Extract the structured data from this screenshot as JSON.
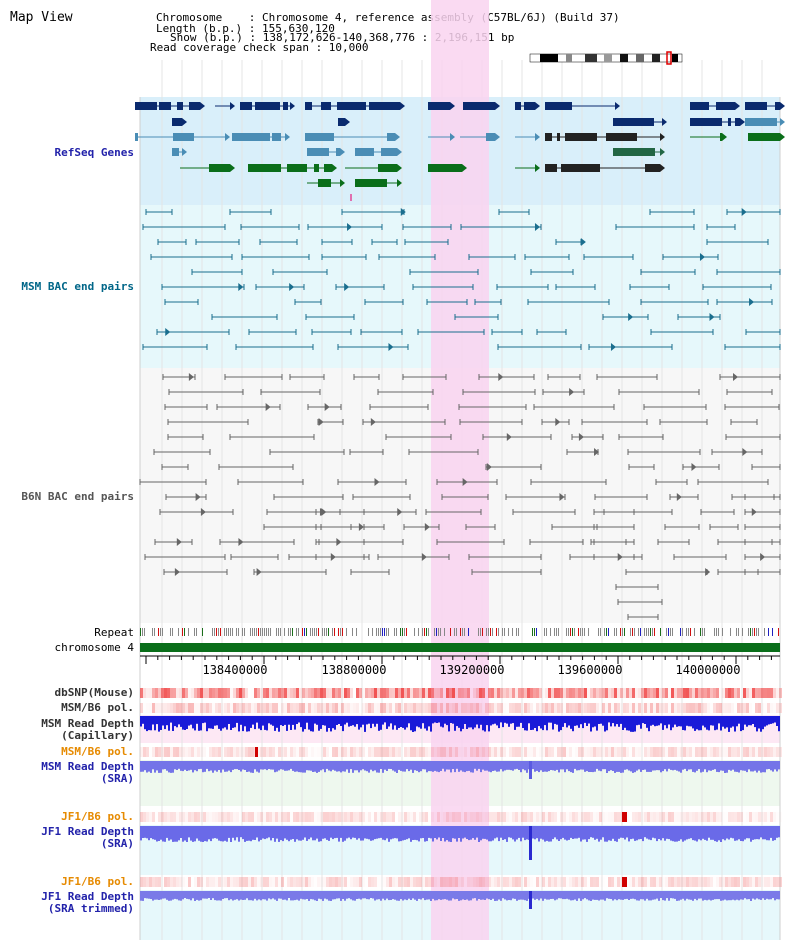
{
  "title": "Map View",
  "info": {
    "chromosome_key": "Chromosome",
    "chromosome_val": ": Chromosome 4, reference assembly (C57BL/6J) (Build 37)",
    "length_key": "Length (b.p.)",
    "length_val": ": 155,630,120",
    "show_key": "Show (b.p.)",
    "show_val": ": 138,172,626-140,368,776 : 2,196,151 bp",
    "coverage_text": "Read coverage check span : 10,000"
  },
  "tracks": {
    "refseq": {
      "label": "RefSeq Genes",
      "color": "#2222aa"
    },
    "msm_bac": {
      "label": "MSM BAC end pairs",
      "color": "#006688"
    },
    "b6n_bac": {
      "label": "B6N BAC end pairs",
      "color": "#555555"
    },
    "repeat": {
      "label": "Repeat"
    },
    "chromosome": {
      "label": "chromosome 4",
      "color": "#006600"
    },
    "dbsnp": {
      "label": "dbSNP(Mouse)"
    },
    "msm_b6_pol_1": {
      "label": "MSM/B6 pol."
    },
    "msm_depth_cap": {
      "label": "MSM Read Depth",
      "sub": "(Capillary)",
      "color": "#2222aa"
    },
    "msm_b6_pol_2": {
      "label": "MSM/B6 pol.",
      "color": "#e68a00"
    },
    "msm_depth_sra": {
      "label": "MSM Read Depth",
      "sub": "(SRA)",
      "color": "#2222aa"
    },
    "jf1_b6_pol_1": {
      "label": "JF1/B6 pol.",
      "color": "#e68a00"
    },
    "jf1_depth_sra": {
      "label": "JF1 Read Depth",
      "sub": "(SRA)",
      "color": "#2222aa"
    },
    "jf1_b6_pol_2": {
      "label": "JF1/B6 pol.",
      "color": "#e68a00"
    },
    "jf1_depth_trim": {
      "label": "JF1 Read Depth",
      "sub": "(SRA trimmed)",
      "color": "#2222aa"
    }
  },
  "axis": {
    "ticks": [
      "138400000",
      "138800000",
      "139200000",
      "139600000",
      "140000000"
    ]
  },
  "colors": {
    "highlight": "#f9d3f0",
    "refseq_bg": "#d9effa",
    "msm_bg": "#e6f8fb",
    "gene_dark": "#0a2a6e",
    "gene_mid": "#4a8db5",
    "gene_green": "#0a6e1a",
    "depth_blue": "#1a1adb",
    "snp_red": "#f04040"
  }
}
